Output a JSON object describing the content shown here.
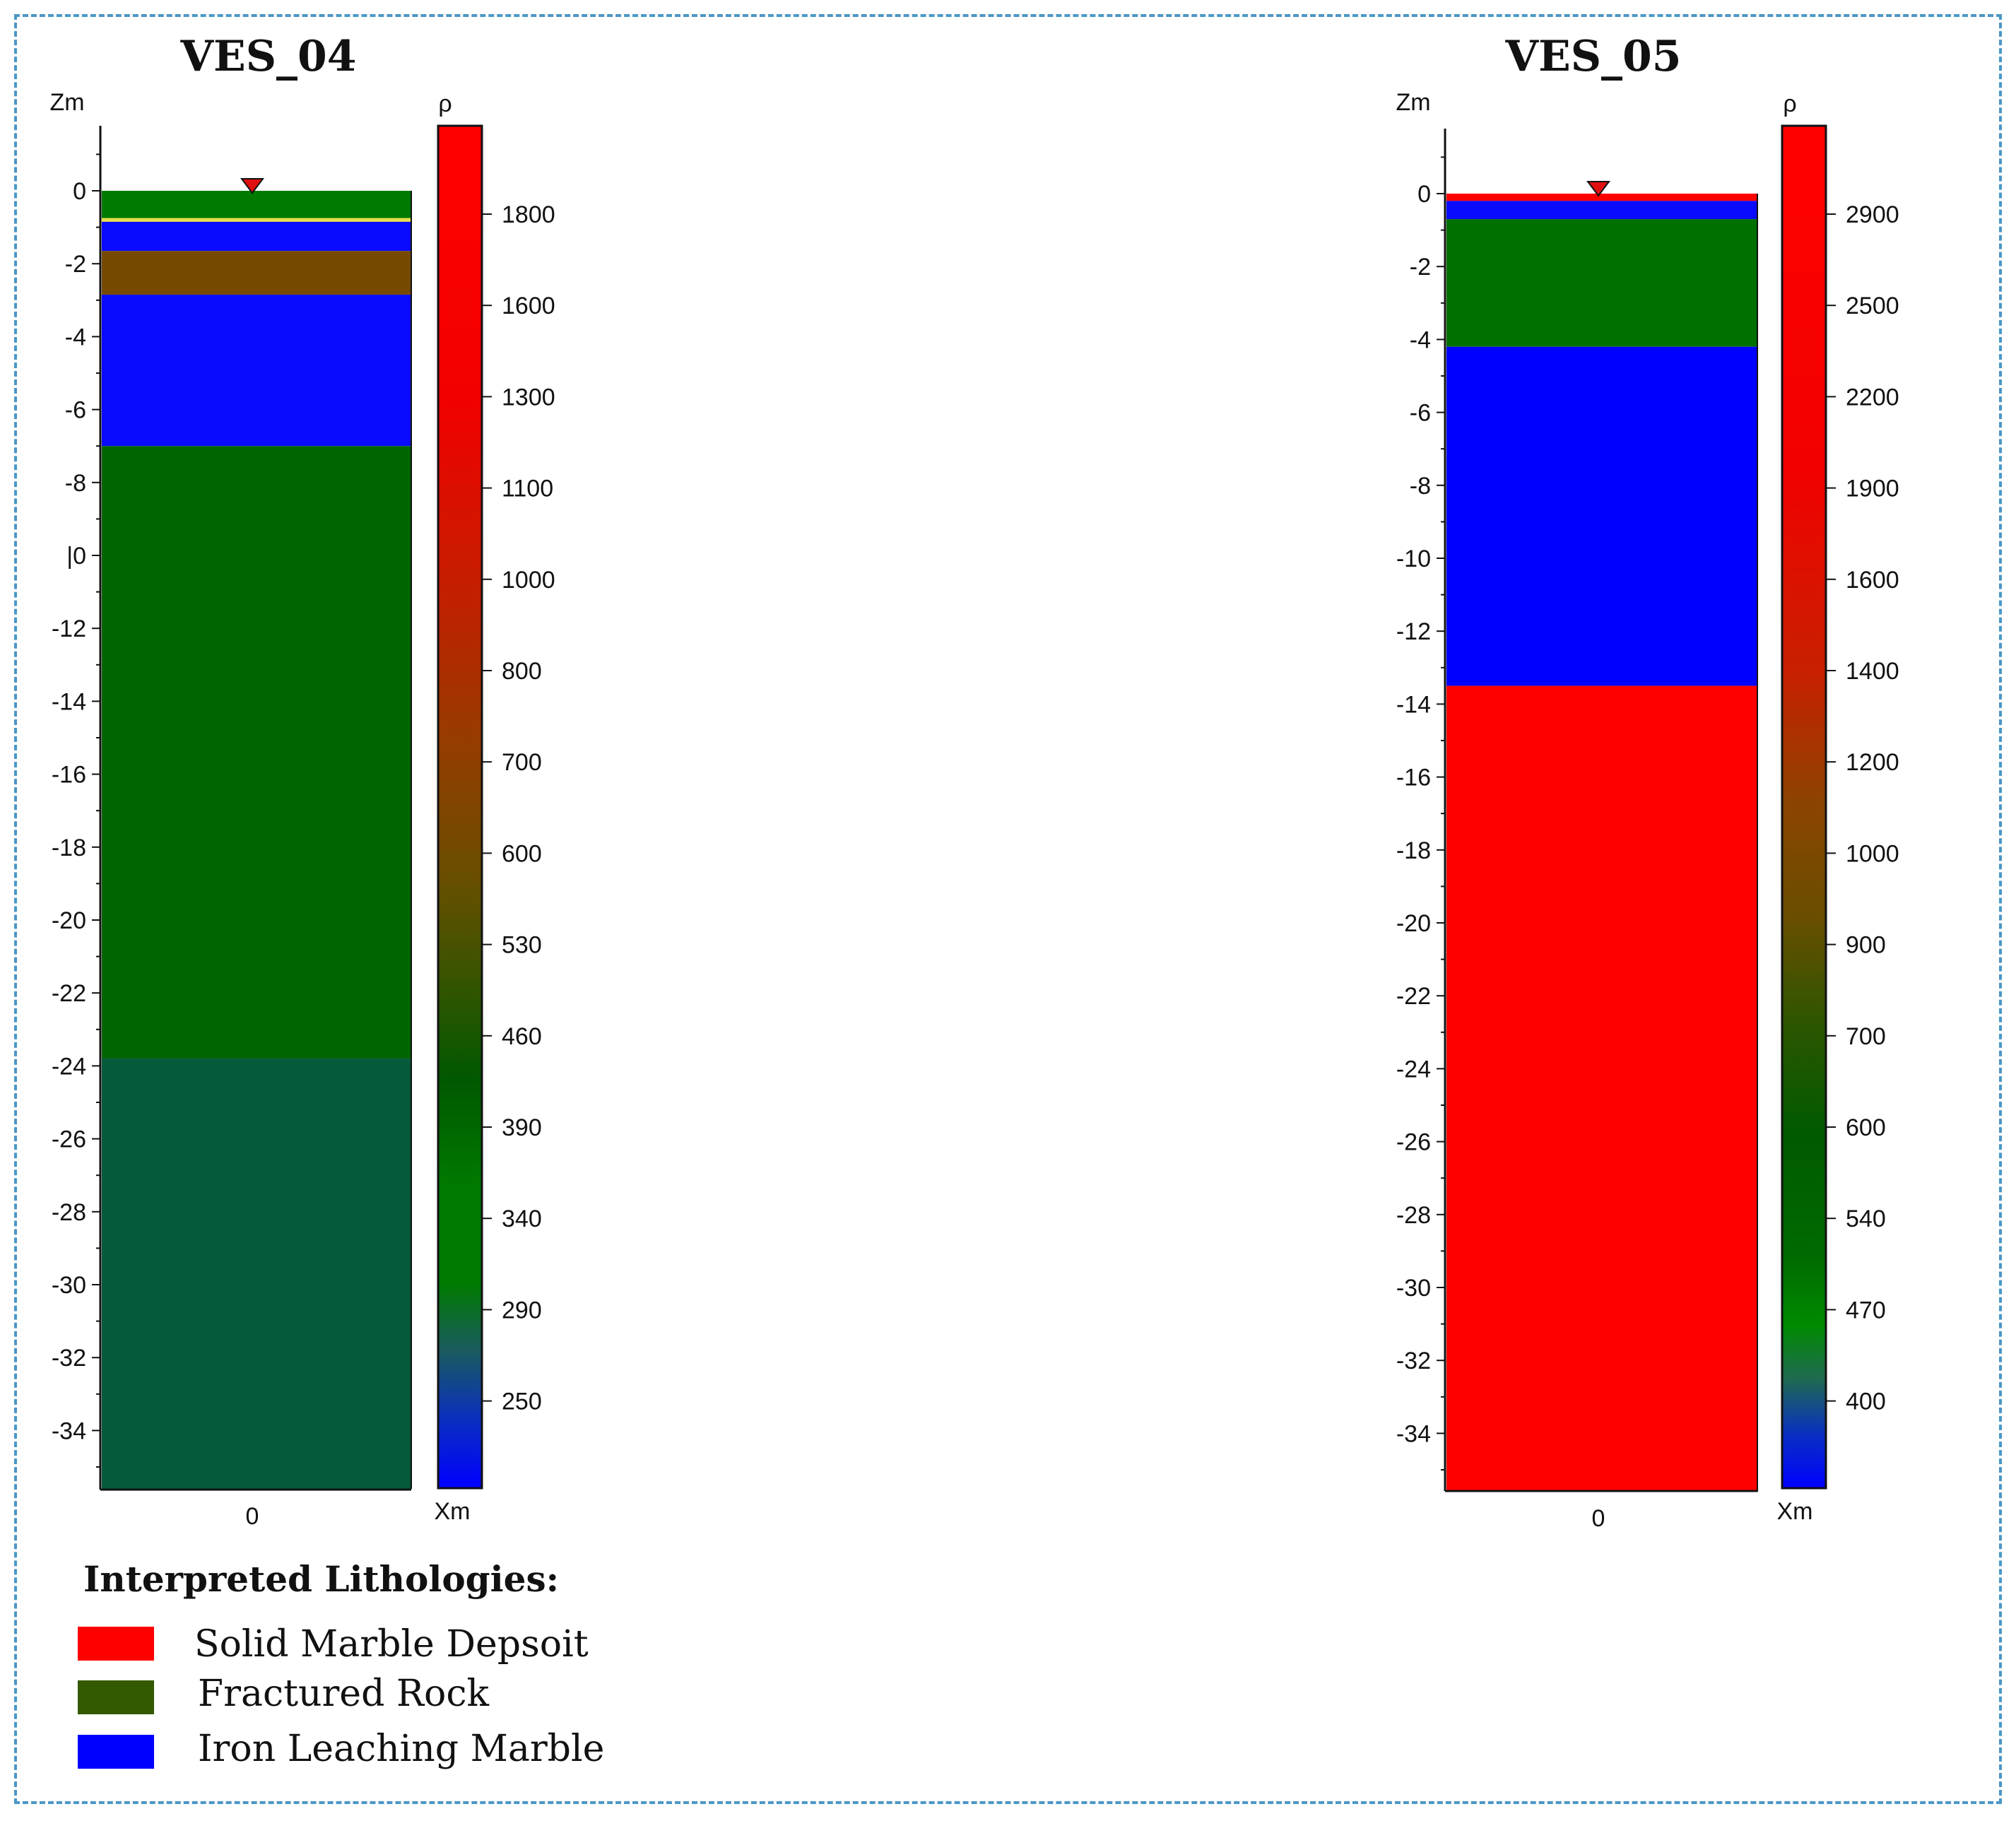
{
  "colors": {
    "frame": "#4a97c8"
  },
  "panels": [
    {
      "title": "VES_04",
      "z_axis_label": "Zm",
      "x_axis_label": "Xm",
      "rho_label": "ρ",
      "x_tick": "0",
      "depth_range": [
        1.8,
        -35.8
      ],
      "depth_ticks": [
        "0",
        "-2",
        "-4",
        "-6",
        "-8",
        "|0",
        "-12",
        "-14",
        "-16",
        "-18",
        "-20",
        "-22",
        "-24",
        "-26",
        "-28",
        "-30",
        "-32",
        "-34"
      ],
      "layers": [
        {
          "top": 0.0,
          "bottom": -0.75,
          "color": "#007a00"
        },
        {
          "top": -0.75,
          "bottom": -0.85,
          "color": "#e6e04a"
        },
        {
          "top": -0.85,
          "bottom": -1.65,
          "color": "#0a0aff"
        },
        {
          "top": -1.65,
          "bottom": -2.85,
          "color": "#754a00"
        },
        {
          "top": -2.85,
          "bottom": -7.0,
          "color": "#0a0aff"
        },
        {
          "top": -7.0,
          "bottom": -23.8,
          "color": "#006400"
        },
        {
          "top": -23.8,
          "bottom": -35.6,
          "color": "#055a3a"
        }
      ],
      "colorbar_labels": [
        "1800",
        "1600",
        "1300",
        "1100",
        "1000",
        "800",
        "700",
        "600",
        "530",
        "460",
        "390",
        "340",
        "290",
        "250"
      ],
      "colorbar_stops": [
        {
          "pos": 0.0,
          "color": "#ff0000"
        },
        {
          "pos": 0.2,
          "color": "#f20000"
        },
        {
          "pos": 0.35,
          "color": "#c02000"
        },
        {
          "pos": 0.45,
          "color": "#963c00"
        },
        {
          "pos": 0.55,
          "color": "#6a4e00"
        },
        {
          "pos": 0.62,
          "color": "#3c5400"
        },
        {
          "pos": 0.7,
          "color": "#005800"
        },
        {
          "pos": 0.78,
          "color": "#007a00"
        },
        {
          "pos": 0.85,
          "color": "#007a00"
        },
        {
          "pos": 0.9,
          "color": "#1a5a60"
        },
        {
          "pos": 0.95,
          "color": "#0a2ec0"
        },
        {
          "pos": 1.0,
          "color": "#0000ff"
        }
      ]
    },
    {
      "title": "VES_05",
      "z_axis_label": "Zm",
      "x_axis_label": "Xm",
      "rho_label": "ρ",
      "x_tick": "0",
      "depth_range": [
        1.8,
        -35.8
      ],
      "depth_ticks": [
        "0",
        "-2",
        "-4",
        "-6",
        "-8",
        "-10",
        "-12",
        "-14",
        "-16",
        "-18",
        "-20",
        "-22",
        "-24",
        "-26",
        "-28",
        "-30",
        "-32",
        "-34"
      ],
      "layers": [
        {
          "top": 0.0,
          "bottom": -0.2,
          "color": "#ff0000"
        },
        {
          "top": -0.2,
          "bottom": -0.7,
          "color": "#0a0aff"
        },
        {
          "top": -0.7,
          "bottom": -4.2,
          "color": "#007000"
        },
        {
          "top": -4.2,
          "bottom": -13.5,
          "color": "#0000ff"
        },
        {
          "top": -13.5,
          "bottom": -35.6,
          "color": "#ff0000"
        }
      ],
      "colorbar_labels": [
        "2900",
        "2500",
        "2200",
        "1900",
        "1600",
        "1400",
        "1200",
        "1000",
        "900",
        "700",
        "600",
        "540",
        "470",
        "400"
      ],
      "colorbar_stops": [
        {
          "pos": 0.0,
          "color": "#ff0000"
        },
        {
          "pos": 0.25,
          "color": "#f20000"
        },
        {
          "pos": 0.4,
          "color": "#c82000"
        },
        {
          "pos": 0.5,
          "color": "#8a4400"
        },
        {
          "pos": 0.58,
          "color": "#6a4e00"
        },
        {
          "pos": 0.66,
          "color": "#2c5600"
        },
        {
          "pos": 0.74,
          "color": "#005a00"
        },
        {
          "pos": 0.83,
          "color": "#006a00"
        },
        {
          "pos": 0.88,
          "color": "#008a00"
        },
        {
          "pos": 0.92,
          "color": "#1f6a50"
        },
        {
          "pos": 0.96,
          "color": "#0a30c0"
        },
        {
          "pos": 1.0,
          "color": "#0000ff"
        }
      ]
    }
  ],
  "legend": {
    "title": "Interpreted Lithologies:",
    "items": [
      {
        "label": "Solid Marble Depsoit",
        "color": "#ff0000"
      },
      {
        "label": "Fractured Rock",
        "color": "#345a00"
      },
      {
        "label": "Iron Leaching Marble",
        "color": "#0000ff"
      }
    ]
  }
}
